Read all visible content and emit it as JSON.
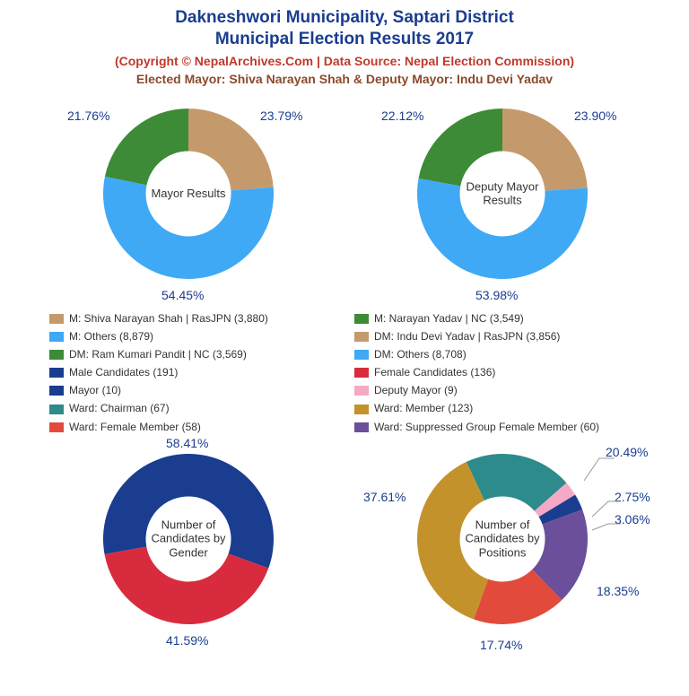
{
  "title_line1": "Dakneshwori Municipality, Saptari District",
  "title_line2": "Municipal Election Results 2017",
  "subtitle1": "(Copyright © NepalArchives.Com | Data Source: Nepal Election Commission)",
  "subtitle2": "Elected Mayor: Shiva Narayan Shah & Deputy Mayor: Indu Devi Yadav",
  "title_color": "#1a3d8f",
  "subtitle1_color": "#c0392b",
  "subtitle2_color": "#8b4a2b",
  "label_color": "#1a3d8f",
  "donut_inner_ratio": 0.5,
  "charts": {
    "mayor": {
      "center_label": "Mayor Results",
      "slices": [
        {
          "label": "23.79%",
          "value": 23.79,
          "color": "#c49a6c"
        },
        {
          "label": "54.45%",
          "value": 54.45,
          "color": "#3fa9f5"
        },
        {
          "label": "21.76%",
          "value": 21.76,
          "color": "#3d8b37"
        }
      ],
      "start_angle": 0
    },
    "deputy": {
      "center_label": "Deputy Mayor Results",
      "slices": [
        {
          "label": "23.90%",
          "value": 23.9,
          "color": "#c49a6c"
        },
        {
          "label": "53.98%",
          "value": 53.98,
          "color": "#3fa9f5"
        },
        {
          "label": "22.12%",
          "value": 22.12,
          "color": "#3d8b37"
        }
      ],
      "start_angle": 0
    },
    "gender": {
      "center_label": "Number of Candidates by Gender",
      "slices": [
        {
          "label": "41.59%",
          "value": 41.59,
          "color": "#d82c3e"
        },
        {
          "label": "58.41%",
          "value": 58.41,
          "color": "#1a3d8f"
        }
      ],
      "start_angle": 110
    },
    "positions": {
      "center_label": "Number of Candidates by Positions",
      "slices": [
        {
          "label": "20.49%",
          "value": 20.49,
          "color": "#2d8b8b"
        },
        {
          "label": "2.75%",
          "value": 2.75,
          "color": "#f5a9c4"
        },
        {
          "label": "3.06%",
          "value": 3.06,
          "color": "#1a3d8f"
        },
        {
          "label": "18.35%",
          "value": 18.35,
          "color": "#6b4f9a"
        },
        {
          "label": "17.74%",
          "value": 17.74,
          "color": "#e24a3b"
        },
        {
          "label": "37.61%",
          "value": 37.61,
          "color": "#c4922b"
        }
      ],
      "start_angle": -25
    }
  },
  "legend_left": [
    {
      "color": "#c49a6c",
      "text": "M: Shiva Narayan Shah | RasJPN (3,880)"
    },
    {
      "color": "#3fa9f5",
      "text": "M: Others (8,879)"
    },
    {
      "color": "#3d8b37",
      "text": "DM: Ram Kumari Pandit | NC (3,569)"
    },
    {
      "color": "#1a3d8f",
      "text": "Male Candidates (191)"
    },
    {
      "color": "#1a3d8f",
      "text": "Mayor (10)"
    },
    {
      "color": "#2d8b8b",
      "text": "Ward: Chairman (67)"
    },
    {
      "color": "#e24a3b",
      "text": "Ward: Female Member (58)"
    }
  ],
  "legend_right": [
    {
      "color": "#3d8b37",
      "text": "M: Narayan Yadav | NC (3,549)"
    },
    {
      "color": "#c49a6c",
      "text": "DM: Indu Devi Yadav | RasJPN (3,856)"
    },
    {
      "color": "#3fa9f5",
      "text": "DM: Others (8,708)"
    },
    {
      "color": "#d82c3e",
      "text": "Female Candidates (136)"
    },
    {
      "color": "#f5a9c4",
      "text": "Deputy Mayor (9)"
    },
    {
      "color": "#c4922b",
      "text": "Ward: Member (123)"
    },
    {
      "color": "#6b4f9a",
      "text": "Ward: Suppressed Group Female Member (60)"
    }
  ]
}
